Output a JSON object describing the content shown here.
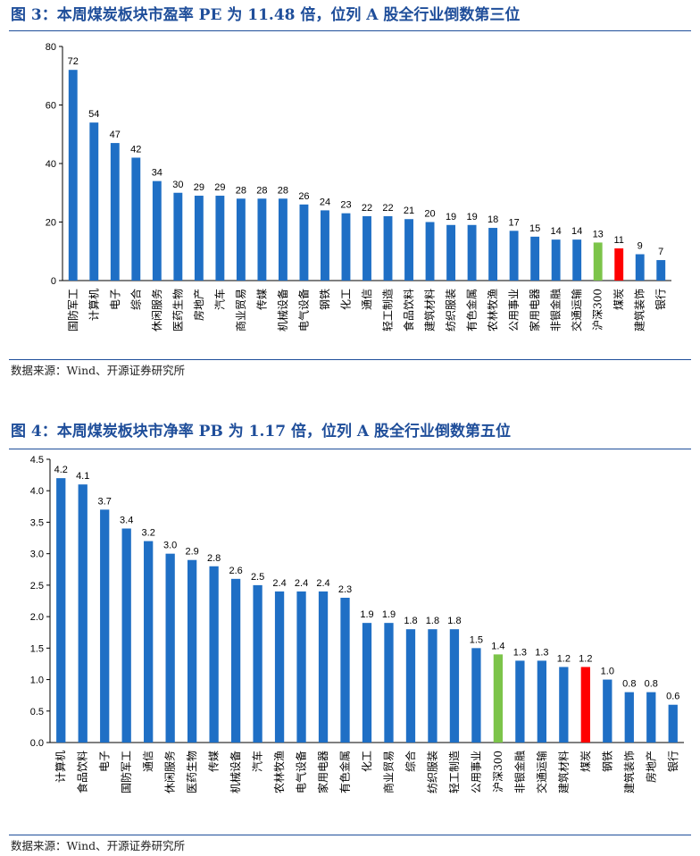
{
  "figures": [
    {
      "title": "图 3：本周煤炭板块市盈率 PE 为 11.48 倍，位列 A 股全行业倒数第三位",
      "source": "数据来源：Wind、开源证券研究所"
    },
    {
      "title": "图 4：本周煤炭板块市净率 PB 为 1.17 倍，位列 A 股全行业倒数第五位",
      "source": "数据来源：Wind、开源证券研究所"
    }
  ],
  "colors": {
    "bar": "#1f6fc5",
    "benchmark": "#7cc44a",
    "highlight": "#ff0000",
    "title": "#1f4e9a"
  },
  "chart_data": [
    {
      "type": "bar",
      "title": "图 3：本周煤炭板块市盈率 PE 为 11.48 倍，位列 A 股全行业倒数第三位",
      "categories": [
        "国防军工",
        "计算机",
        "电子",
        "综合",
        "休闲服务",
        "医药生物",
        "房地产",
        "汽车",
        "商业贸易",
        "传媒",
        "机械设备",
        "电气设备",
        "钢铁",
        "化工",
        "通信",
        "轻工制造",
        "食品饮料",
        "建筑材料",
        "纺织服装",
        "有色金属",
        "农林牧渔",
        "公用事业",
        "家用电器",
        "非银金融",
        "交通运输",
        "沪深300",
        "煤炭",
        "建筑装饰",
        "银行"
      ],
      "values": [
        72,
        54,
        47,
        42,
        34,
        30,
        29,
        29,
        28,
        28,
        28,
        26,
        24,
        23,
        22,
        22,
        21,
        20,
        19,
        19,
        18,
        17,
        15,
        14,
        14,
        13,
        11,
        9,
        7
      ],
      "value_labels": [
        "72",
        "54",
        "47",
        "42",
        "34",
        "30",
        "29",
        "29",
        "28",
        "28",
        "28",
        "26",
        "24",
        "23",
        "22",
        "22",
        "21",
        "20",
        "19",
        "19",
        "18",
        "17",
        "15",
        "14",
        "14",
        "13",
        "11",
        "9",
        "7"
      ],
      "ylim": [
        0,
        80
      ],
      "yticks": [
        "0",
        "20",
        "40",
        "60",
        "80"
      ],
      "grid": false,
      "highlight": {
        "沪深300": "benchmark",
        "煤炭": "highlight"
      }
    },
    {
      "type": "bar",
      "title": "图 4：本周煤炭板块市净率 PB 为 1.17 倍，位列 A 股全行业倒数第五位",
      "categories": [
        "计算机",
        "食品饮料",
        "电子",
        "国防军工",
        "通信",
        "休闲服务",
        "医药生物",
        "传媒",
        "机械设备",
        "汽车",
        "农林牧渔",
        "电气设备",
        "家用电器",
        "有色金属",
        "化工",
        "商业贸易",
        "综合",
        "纺织服装",
        "轻工制造",
        "公用事业",
        "沪深300",
        "非银金融",
        "交通运输",
        "建筑材料",
        "煤炭",
        "钢铁",
        "建筑装饰",
        "房地产",
        "银行"
      ],
      "values": [
        4.2,
        4.1,
        3.7,
        3.4,
        3.2,
        3.0,
        2.9,
        2.8,
        2.6,
        2.5,
        2.4,
        2.4,
        2.4,
        2.3,
        1.9,
        1.9,
        1.8,
        1.8,
        1.8,
        1.5,
        1.4,
        1.3,
        1.3,
        1.2,
        1.2,
        1.0,
        0.8,
        0.8,
        0.6
      ],
      "value_labels": [
        "4.2",
        "4.1",
        "3.7",
        "3.4",
        "3.2",
        "3.0",
        "2.9",
        "2.8",
        "2.6",
        "2.5",
        "2.4",
        "2.4",
        "2.4",
        "2.3",
        "1.9",
        "1.9",
        "1.8",
        "1.8",
        "1.8",
        "1.5",
        "1.4",
        "1.3",
        "1.3",
        "1.2",
        "1.2",
        "1.0",
        "0.8",
        "0.8",
        "0.6"
      ],
      "ylim": [
        0,
        4.5
      ],
      "yticks": [
        "0.0",
        "0.5",
        "1.0",
        "1.5",
        "2.0",
        "2.5",
        "3.0",
        "3.5",
        "4.0",
        "4.5"
      ],
      "grid": false,
      "highlight": {
        "沪深300": "benchmark",
        "煤炭": "highlight"
      }
    }
  ]
}
